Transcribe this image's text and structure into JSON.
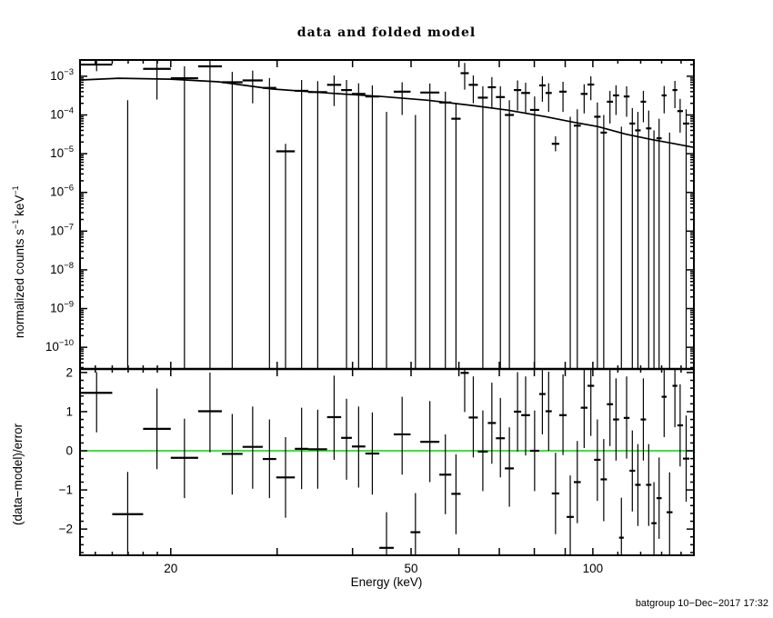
{
  "chart_data": {
    "type": "scatter",
    "title": "data and folded model",
    "xlabel": "Energy (keV)",
    "ylabel_top_parts": [
      {
        "t": "normalized counts s",
        "sup": false
      },
      {
        "t": "−1",
        "sup": true
      },
      {
        "t": " keV",
        "sup": false
      },
      {
        "t": "−1",
        "sup": true
      }
    ],
    "ylabel_bottom": "(data−model)/error",
    "footer": "batgroup 10−Dec−2017 17:32",
    "colors": {
      "foreground": "#000000",
      "background": "#ffffff",
      "zero_line": "#00d900"
    },
    "axes": {
      "x": {
        "scale": "log",
        "min": 14.15,
        "max": 147.0,
        "major_ticks": [
          20,
          30,
          40,
          50,
          60,
          70,
          80,
          90,
          100
        ],
        "minor_ticks": [
          15,
          16,
          17,
          18,
          19,
          110,
          120,
          130,
          140
        ],
        "labeled_ticks": [
          20,
          50,
          100
        ]
      },
      "y_top": {
        "scale": "log",
        "log_min": -10.56,
        "log_max": -2.58,
        "decade_exponents": [
          -3,
          -4,
          -5,
          -6,
          -7,
          -8,
          -9,
          -10
        ]
      },
      "y_bottom": {
        "scale": "linear",
        "min": -2.67,
        "max": 2.09,
        "labeled_ticks": [
          2,
          1,
          0,
          -1,
          -2
        ],
        "minor_step": 0.2,
        "zero_line": 0
      }
    },
    "model": [
      [
        14.2,
        0.0008
      ],
      [
        16.4,
        0.00089
      ],
      [
        20.0,
        0.00084
      ],
      [
        24.0,
        0.00072
      ],
      [
        29.4,
        0.00047
      ],
      [
        36.3,
        0.00037
      ],
      [
        44.7,
        0.0003
      ],
      [
        53.3,
        0.00024
      ],
      [
        63.2,
        0.000175
      ],
      [
        72.3,
        0.000133
      ],
      [
        83.2,
        9.1e-05
      ],
      [
        92.4,
        6.6e-05
      ],
      [
        102.0,
        5e-05
      ],
      [
        113.3,
        3.2e-05
      ],
      [
        125.4,
        2.3e-05
      ],
      [
        134.2,
        1.9e-05
      ],
      [
        147.0,
        1.45e-05
      ]
    ],
    "bins": [
      {
        "e": [
          14.2,
          16.0
        ],
        "t": [
          0.002,
          0.0029,
          0.00135
        ],
        "r": [
          1.48,
          2.01,
          0.47
        ]
      },
      {
        "e": [
          16.0,
          18.0
        ],
        "t": [
          null,
          0.00024,
          null
        ],
        "r": [
          -1.62,
          -0.54,
          null
        ]
      },
      {
        "e": [
          18.0,
          20.0
        ],
        "t": [
          0.00155,
          0.0028,
          0.00025
        ],
        "r": [
          0.56,
          1.59,
          -0.47
        ]
      },
      {
        "e": [
          20.0,
          22.2
        ],
        "t": [
          0.00089,
          0.0018,
          null
        ],
        "r": [
          -0.18,
          0.82,
          -1.21
        ]
      },
      {
        "e": [
          22.2,
          24.3
        ],
        "t": [
          0.0018,
          0.0028,
          null
        ],
        "r": [
          1.01,
          2.0,
          -0.04
        ]
      },
      {
        "e": [
          24.3,
          26.3
        ],
        "t": [
          0.0007,
          0.0013,
          null
        ],
        "r": [
          -0.08,
          0.94,
          -1.12
        ]
      },
      {
        "e": [
          26.3,
          28.4
        ],
        "t": [
          0.00078,
          0.0014,
          0.0002
        ],
        "r": [
          0.1,
          1.13,
          -0.97
        ]
      },
      {
        "e": [
          28.4,
          29.9
        ],
        "t": [
          0.0005,
          0.0009,
          null
        ],
        "r": [
          -0.21,
          0.8,
          -1.21
        ]
      },
      {
        "e": [
          29.9,
          32.1
        ],
        "t": [
          1.15e-05,
          1.8e-05,
          null
        ],
        "r": [
          -0.68,
          0.35,
          -1.71
        ]
      },
      {
        "e": [
          32.1,
          33.8
        ],
        "t": [
          0.00042,
          0.0008,
          null
        ],
        "r": [
          0.05,
          1.1,
          -0.98
        ]
      },
      {
        "e": [
          33.8,
          36.3
        ],
        "t": [
          0.00039,
          0.00075,
          null
        ],
        "r": [
          0.04,
          1.05,
          -0.97
        ]
      },
      {
        "e": [
          36.3,
          38.3
        ],
        "t": [
          0.0006,
          0.00105,
          0.00017
        ],
        "r": [
          0.86,
          1.92,
          -0.23
        ]
      },
      {
        "e": [
          38.3,
          39.9
        ],
        "t": [
          0.00044,
          0.0008,
          null
        ],
        "r": [
          0.33,
          1.33,
          -0.74
        ]
      },
      {
        "e": [
          39.9,
          42.0
        ],
        "t": [
          0.00035,
          0.00066,
          null
        ],
        "r": [
          0.11,
          1.13,
          -0.94
        ]
      },
      {
        "e": [
          42.0,
          44.3
        ],
        "t": [
          0.0003,
          0.00058,
          null
        ],
        "r": [
          -0.07,
          0.98,
          -1.12
        ]
      },
      {
        "e": [
          44.3,
          46.8
        ],
        "t": [
          null,
          0.00012,
          null
        ],
        "r": [
          -2.48,
          -1.57,
          null
        ]
      },
      {
        "e": [
          46.8,
          49.9
        ],
        "t": [
          0.0004,
          0.0007,
          0.0001
        ],
        "r": [
          0.42,
          1.38,
          -0.61
        ]
      },
      {
        "e": [
          49.9,
          51.8
        ],
        "t": [
          null,
          0.0001,
          null
        ],
        "r": [
          -2.08,
          -1.08,
          null
        ]
      },
      {
        "e": [
          51.8,
          55.7
        ],
        "t": [
          0.00038,
          0.00065,
          null
        ],
        "r": [
          0.23,
          1.27,
          -0.8
        ]
      },
      {
        "e": [
          55.7,
          58.3
        ],
        "t": [
          0.00021,
          0.0004,
          null
        ],
        "r": [
          -0.61,
          0.42,
          -1.62
        ]
      },
      {
        "e": [
          58.3,
          60.4
        ],
        "t": [
          8e-05,
          0.0002,
          null
        ],
        "r": [
          -1.1,
          -0.09,
          -2.13
        ]
      },
      {
        "e": [
          60.4,
          62.3
        ],
        "t": [
          0.0012,
          0.0022,
          0.00045
        ],
        "r": [
          1.99,
          null,
          0.99
        ]
      },
      {
        "e": [
          62.3,
          64.5
        ],
        "t": [
          0.0006,
          0.00105,
          0.0002
        ],
        "r": [
          0.85,
          1.9,
          -0.17
        ]
      },
      {
        "e": [
          64.5,
          67.0
        ],
        "t": [
          0.00028,
          0.00055,
          null
        ],
        "r": [
          -0.02,
          1.03,
          -1.03
        ]
      },
      {
        "e": [
          67.0,
          69.1
        ],
        "t": [
          0.00052,
          0.00095,
          0.00015
        ],
        "r": [
          0.71,
          1.74,
          -0.33
        ]
      },
      {
        "e": [
          69.1,
          71.5
        ],
        "t": [
          0.00029,
          0.00055,
          null
        ],
        "r": [
          0.32,
          1.35,
          -0.68
        ]
      },
      {
        "e": [
          71.5,
          74.0
        ],
        "t": [
          0.0001,
          0.00024,
          null
        ],
        "r": [
          -0.45,
          0.6,
          -1.43
        ]
      },
      {
        "e": [
          74.0,
          76.1
        ],
        "t": [
          0.00044,
          0.00078,
          0.00013
        ],
        "r": [
          1.0,
          2.01,
          -0.02
        ]
      },
      {
        "e": [
          76.1,
          78.7
        ],
        "t": [
          0.00037,
          0.00068,
          0.00011
        ],
        "r": [
          0.91,
          1.9,
          -0.12
        ]
      },
      {
        "e": [
          78.7,
          81.5
        ],
        "t": [
          0.000135,
          0.0003,
          null
        ],
        "r": [
          0.0,
          1.03,
          -1.03
        ]
      },
      {
        "e": [
          81.5,
          83.5
        ],
        "t": [
          0.00058,
          0.001,
          0.00022
        ],
        "r": [
          1.45,
          null,
          0.42
        ]
      },
      {
        "e": [
          83.5,
          85.5
        ],
        "t": [
          0.00037,
          0.00066,
          0.00012
        ],
        "r": [
          1.01,
          2.02,
          0.0
        ]
      },
      {
        "e": [
          85.5,
          88.0
        ],
        "t": [
          1.8e-05,
          2.8e-05,
          1.15e-05
        ],
        "r": [
          -1.09,
          -0.05,
          -2.13
        ]
      },
      {
        "e": [
          88.0,
          90.5
        ],
        "t": [
          0.0004,
          0.00072,
          0.00012
        ],
        "r": [
          0.91,
          1.95,
          -0.11
        ]
      },
      {
        "e": [
          90.5,
          93.0
        ],
        "t": [
          null,
          9e-05,
          null
        ],
        "r": [
          -1.69,
          -0.63,
          null
        ]
      },
      {
        "e": [
          93.0,
          95.5
        ],
        "t": [
          5.3e-05,
          0.00014,
          null
        ],
        "r": [
          -0.8,
          0.25,
          -1.85
        ]
      },
      {
        "e": [
          95.5,
          98.0
        ],
        "t": [
          0.00035,
          0.00062,
          0.00011
        ],
        "r": [
          1.1,
          2.13,
          0.07
        ]
      },
      {
        "e": [
          98.0,
          100.5
        ],
        "t": [
          0.00061,
          0.001,
          0.00024
        ],
        "r": [
          1.66,
          null,
          0.38
        ]
      },
      {
        "e": [
          100.5,
          103.0
        ],
        "t": [
          9e-05,
          0.00021,
          null
        ],
        "r": [
          -0.23,
          0.8,
          -1.28
        ]
      },
      {
        "e": [
          103.0,
          105.5
        ],
        "t": [
          3.5e-05,
          0.0001,
          null
        ],
        "r": [
          -0.73,
          0.3,
          -1.8
        ]
      },
      {
        "e": [
          105.5,
          108.0
        ],
        "t": [
          0.00022,
          0.00042,
          6e-05
        ],
        "r": [
          1.19,
          null,
          0.12
        ]
      },
      {
        "e": [
          108.0,
          110.5
        ],
        "t": [
          0.00032,
          0.00058,
          0.0001
        ],
        "r": [
          0.8,
          1.85,
          -0.25
        ]
      },
      {
        "e": [
          110.5,
          112.5
        ],
        "t": [
          null,
          5e-05,
          null
        ],
        "r": [
          -2.22,
          -1.2,
          null
        ]
      },
      {
        "e": [
          112.5,
          115.0
        ],
        "t": [
          0.0003,
          0.00055,
          9e-05
        ],
        "r": [
          0.84,
          1.9,
          -0.2
        ]
      },
      {
        "e": [
          115.0,
          117.5
        ],
        "t": [
          6e-05,
          0.00015,
          null
        ],
        "r": [
          -0.51,
          0.52,
          -1.55
        ]
      },
      {
        "e": [
          117.5,
          120.0
        ],
        "t": [
          4e-05,
          0.00012,
          null
        ],
        "r": [
          -0.87,
          0.17,
          -1.92
        ]
      },
      {
        "e": [
          120.0,
          122.5
        ],
        "t": [
          0.00022,
          0.00042,
          6.5e-05
        ],
        "r": [
          0.8,
          1.85,
          -0.25
        ]
      },
      {
        "e": [
          122.5,
          125.0
        ],
        "t": [
          4.5e-05,
          0.00013,
          null
        ],
        "r": [
          -0.87,
          0.17,
          -1.92
        ]
      },
      {
        "e": [
          125.0,
          127.5
        ],
        "t": [
          null,
          4e-05,
          null
        ],
        "r": [
          -1.85,
          -0.8,
          null
        ]
      },
      {
        "e": [
          127.5,
          130.0
        ],
        "t": [
          2.5e-05,
          8e-05,
          null
        ],
        "r": [
          -1.21,
          -0.17,
          -2.25
        ]
      },
      {
        "e": [
          130.0,
          132.5
        ],
        "t": [
          0.00032,
          0.00056,
          0.00011
        ],
        "r": [
          1.38,
          null,
          0.35
        ]
      },
      {
        "e": [
          132.5,
          135.5
        ],
        "t": [
          null,
          3.5e-05,
          null
        ],
        "r": [
          -1.57,
          -0.55,
          null
        ]
      },
      {
        "e": [
          135.5,
          138.0
        ],
        "t": [
          0.00044,
          0.00076,
          0.00015
        ],
        "r": [
          1.66,
          null,
          0.6
        ]
      },
      {
        "e": [
          138.0,
          141.0
        ],
        "t": [
          0.000126,
          0.00026,
          3.5e-05
        ],
        "r": [
          0.65,
          1.7,
          -0.4
        ]
      },
      {
        "e": [
          141.0,
          144.5
        ],
        "t": [
          6e-05,
          0.00014,
          null
        ],
        "r": [
          -0.2,
          0.9,
          -1.3
        ]
      }
    ]
  }
}
